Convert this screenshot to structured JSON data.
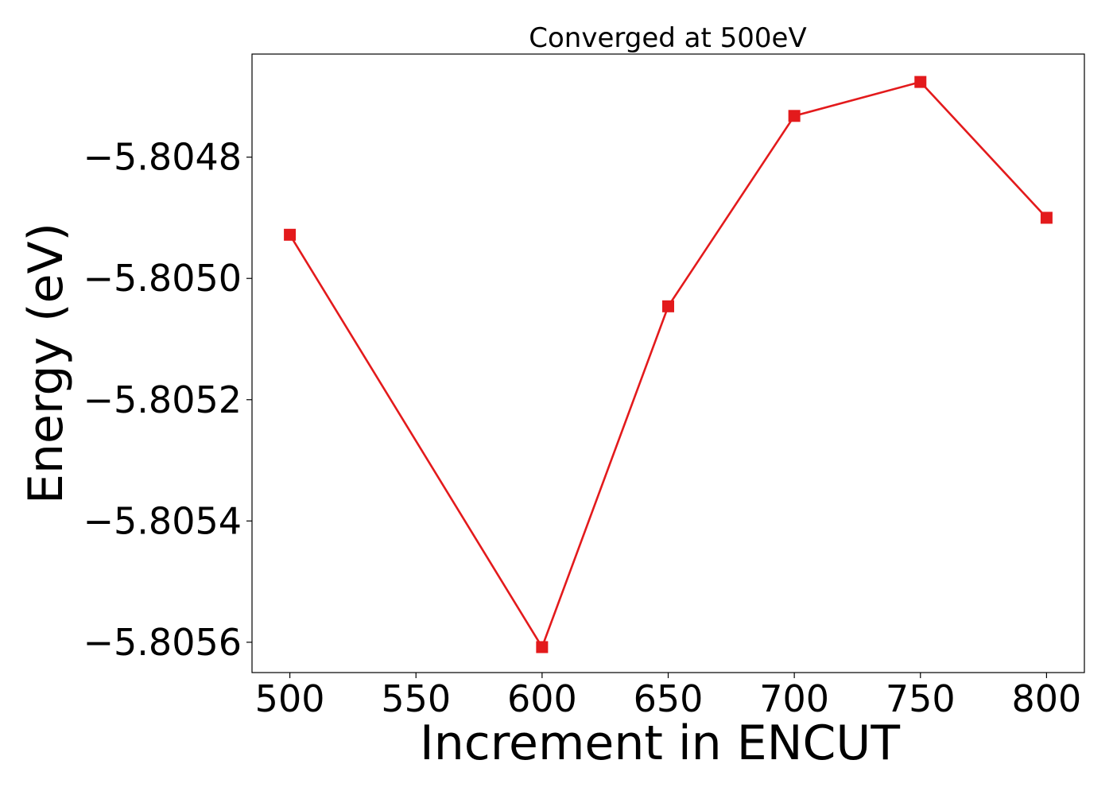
{
  "chart_data": {
    "type": "line",
    "title": "Converged at 500eV",
    "xlabel": "Increment in ENCUT",
    "ylabel": "Energy (eV)",
    "x": [
      500,
      600,
      650,
      700,
      750,
      800
    ],
    "series": [
      {
        "values": [
          -5.804928,
          -5.805608,
          -5.805046,
          -5.804732,
          -5.804676,
          -5.8049
        ],
        "color": "#e31a1c",
        "marker": "square"
      }
    ],
    "xlim": [
      485,
      815
    ],
    "ylim": [
      -5.80565,
      -5.80463
    ],
    "xticks": [
      500,
      550,
      600,
      650,
      700,
      750,
      800
    ],
    "xtick_labels": [
      "500",
      "550",
      "600",
      "650",
      "700",
      "750",
      "800"
    ],
    "yticks": [
      -5.8048,
      -5.805,
      -5.8052,
      -5.8054,
      -5.8056
    ],
    "ytick_labels": [
      "−5.8048",
      "−5.8050",
      "−5.8052",
      "−5.8054",
      "−5.8056"
    ],
    "grid": false,
    "legend": false
  }
}
